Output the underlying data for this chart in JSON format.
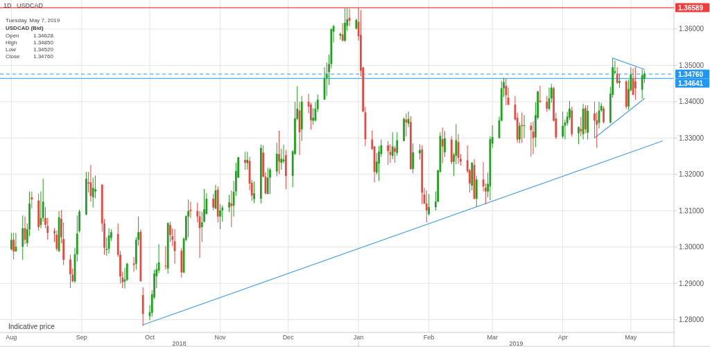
{
  "chart_data": {
    "type": "candlestick",
    "title": "USDCAD",
    "subtitle": "1D",
    "x": [
      "2018-08-01",
      "2018-08-02",
      "2018-08-03",
      "2018-08-06",
      "2018-08-07",
      "2018-08-08",
      "2018-08-09",
      "2018-08-10",
      "2018-08-13",
      "2018-08-14",
      "2018-08-15",
      "2018-08-16",
      "2018-08-17",
      "2018-08-20",
      "2018-08-21",
      "2018-08-22",
      "2018-08-23",
      "2018-08-24",
      "2018-08-27",
      "2018-08-28",
      "2018-08-29",
      "2018-08-30",
      "2018-08-31",
      "2018-09-03",
      "2018-09-04",
      "2018-09-05",
      "2018-09-06",
      "2018-09-07",
      "2018-09-10",
      "2018-09-11",
      "2018-09-12",
      "2018-09-13",
      "2018-09-14",
      "2018-09-17",
      "2018-09-18",
      "2018-09-19",
      "2018-09-20",
      "2018-09-21",
      "2018-09-24",
      "2018-09-25",
      "2018-09-26",
      "2018-09-27",
      "2018-09-28",
      "2018-10-01",
      "2018-10-02",
      "2018-10-03",
      "2018-10-04",
      "2018-10-05",
      "2018-10-08",
      "2018-10-09",
      "2018-10-10",
      "2018-10-11",
      "2018-10-12",
      "2018-10-15",
      "2018-10-16",
      "2018-10-17",
      "2018-10-18",
      "2018-10-19",
      "2018-10-22",
      "2018-10-23",
      "2018-10-24",
      "2018-10-25",
      "2018-10-26",
      "2018-10-29",
      "2018-10-30",
      "2018-10-31",
      "2018-11-01",
      "2018-11-02",
      "2018-11-05",
      "2018-11-06",
      "2018-11-07",
      "2018-11-08",
      "2018-11-09",
      "2018-11-12",
      "2018-11-13",
      "2018-11-14",
      "2018-11-15",
      "2018-11-16",
      "2018-11-19",
      "2018-11-20",
      "2018-11-21",
      "2018-11-22",
      "2018-11-23",
      "2018-11-26",
      "2018-11-27",
      "2018-11-28",
      "2018-11-29",
      "2018-11-30",
      "2018-12-03",
      "2018-12-04",
      "2018-12-05",
      "2018-12-06",
      "2018-12-07",
      "2018-12-10",
      "2018-12-11",
      "2018-12-12",
      "2018-12-13",
      "2018-12-14",
      "2018-12-17",
      "2018-12-18",
      "2018-12-19",
      "2018-12-20",
      "2018-12-21",
      "2018-12-24",
      "2018-12-25",
      "2018-12-26",
      "2018-12-27",
      "2018-12-28",
      "2018-12-31",
      "2019-01-01",
      "2019-01-02",
      "2019-01-03",
      "2019-01-04",
      "2019-01-07",
      "2019-01-08",
      "2019-01-09",
      "2019-01-10",
      "2019-01-11",
      "2019-01-14",
      "2019-01-15",
      "2019-01-16",
      "2019-01-17",
      "2019-01-18",
      "2019-01-21",
      "2019-01-22",
      "2019-01-23",
      "2019-01-24",
      "2019-01-25",
      "2019-01-28",
      "2019-01-29",
      "2019-01-30",
      "2019-01-31",
      "2019-02-01",
      "2019-02-04",
      "2019-02-05",
      "2019-02-06",
      "2019-02-07",
      "2019-02-08",
      "2019-02-11",
      "2019-02-12",
      "2019-02-13",
      "2019-02-14",
      "2019-02-15",
      "2019-02-18",
      "2019-02-19",
      "2019-02-20",
      "2019-02-21",
      "2019-02-22",
      "2019-02-25",
      "2019-02-26",
      "2019-02-27",
      "2019-02-28",
      "2019-03-01",
      "2019-03-04",
      "2019-03-05",
      "2019-03-06",
      "2019-03-07",
      "2019-03-08",
      "2019-03-11",
      "2019-03-12",
      "2019-03-13",
      "2019-03-14",
      "2019-03-15",
      "2019-03-18",
      "2019-03-19",
      "2019-03-20",
      "2019-03-21",
      "2019-03-22",
      "2019-03-25",
      "2019-03-26",
      "2019-03-27",
      "2019-03-28",
      "2019-03-29",
      "2019-04-01",
      "2019-04-02",
      "2019-04-03",
      "2019-04-04",
      "2019-04-05",
      "2019-04-08",
      "2019-04-09",
      "2019-04-10",
      "2019-04-11",
      "2019-04-12",
      "2019-04-15",
      "2019-04-16",
      "2019-04-17",
      "2019-04-18",
      "2019-04-19",
      "2019-04-22",
      "2019-04-23",
      "2019-04-24",
      "2019-04-25",
      "2019-04-26",
      "2019-04-29",
      "2019-04-30",
      "2019-05-01",
      "2019-05-02",
      "2019-05-03",
      "2019-05-06",
      "2019-05-07"
    ],
    "ohlc": [
      [
        1.2994,
        1.3039,
        1.2991,
        1.302
      ],
      [
        1.302,
        1.3039,
        1.2966,
        1.2988
      ],
      [
        1.2988,
        1.3039,
        1.2987,
        1.3001
      ],
      [
        1.3001,
        1.3087,
        1.2965,
        1.3052
      ],
      [
        1.3052,
        1.3084,
        1.3008,
        1.302
      ],
      [
        1.3011,
        1.3065,
        1.3001,
        1.3049
      ],
      [
        1.3049,
        1.3153,
        1.303,
        1.312
      ],
      [
        1.3137,
        1.3153,
        1.3106,
        1.3131
      ],
      [
        1.3128,
        1.3147,
        1.3045,
        1.3055
      ],
      [
        1.3061,
        1.3153,
        1.3052,
        1.308
      ],
      [
        1.308,
        1.3188,
        1.307,
        1.3125
      ],
      [
        1.308,
        1.311,
        1.3052,
        1.3061
      ],
      [
        1.3058,
        1.308,
        1.302,
        1.3039
      ],
      [
        1.3044,
        1.3052,
        1.3014,
        1.3038
      ],
      [
        1.3034,
        1.3046,
        1.2989,
        1.2995
      ],
      [
        1.2989,
        1.3099,
        1.2986,
        1.3082
      ],
      [
        1.3078,
        1.3102,
        1.3011,
        1.3027
      ],
      [
        1.3022,
        1.3068,
        1.2951,
        1.2965
      ],
      [
        1.2966,
        1.2979,
        1.2887,
        1.2925
      ],
      [
        1.2924,
        1.2941,
        1.2903,
        1.2906
      ],
      [
        1.2906,
        1.2998,
        1.2901,
        1.298
      ],
      [
        1.298,
        1.3087,
        1.296,
        1.3037
      ],
      [
        1.3044,
        1.3103,
        1.304,
        1.3098
      ],
      [
        1.309,
        1.3207,
        1.3087,
        1.3188
      ],
      [
        1.3178,
        1.3207,
        1.315,
        1.3175
      ],
      [
        1.3178,
        1.3226,
        1.3125,
        1.3141
      ],
      [
        1.3137,
        1.3191,
        1.3109,
        1.3163
      ],
      [
        1.3153,
        1.3197,
        1.3134,
        1.3159
      ],
      [
        1.3172,
        1.3173,
        1.3042,
        1.3065
      ],
      [
        1.3065,
        1.3077,
        1.2979,
        1.2998
      ],
      [
        1.2992,
        1.3026,
        1.2976,
        1.2995
      ],
      [
        1.2995,
        1.3052,
        1.2982,
        1.3032
      ],
      [
        1.3025,
        1.3049,
        1.3017,
        1.3041
      ],
      [
        1.3036,
        1.3065,
        1.2973,
        1.2979
      ],
      [
        1.2979,
        1.2989,
        1.29,
        1.2919
      ],
      [
        1.2916,
        1.2932,
        1.2887,
        1.2903
      ],
      [
        1.2905,
        1.2943,
        1.2886,
        1.2911
      ],
      [
        1.291,
        1.2957,
        1.2906,
        1.2954
      ],
      [
        1.2955,
        1.2973,
        1.2932,
        1.2951
      ],
      [
        1.2954,
        1.3027,
        1.2938,
        1.302
      ],
      [
        1.302,
        1.3084,
        1.3004,
        1.3041
      ],
      [
        1.3042,
        1.3049,
        1.2905,
        1.2906
      ],
      [
        1.2868,
        1.2889,
        1.2783,
        1.2816
      ],
      [
        1.281,
        1.284,
        1.2799,
        1.2821
      ],
      [
        1.2819,
        1.2882,
        1.2808,
        1.287
      ],
      [
        1.2862,
        1.2937,
        1.2857,
        1.2927
      ],
      [
        1.292,
        1.2955,
        1.2887,
        1.2939
      ],
      [
        1.2935,
        1.3008,
        1.2928,
        1.2958
      ],
      [
        1.2949,
        1.3003,
        1.2938,
        1.2947
      ],
      [
        1.2941,
        1.3068,
        1.2927,
        1.3066
      ],
      [
        1.3061,
        1.307,
        1.3014,
        1.3033
      ],
      [
        1.303,
        1.3051,
        1.3003,
        1.302
      ],
      [
        1.3016,
        1.3049,
        1.2954,
        1.2989
      ],
      [
        1.299,
        1.2997,
        1.2916,
        1.293
      ],
      [
        1.293,
        1.3027,
        1.2928,
        1.3023
      ],
      [
        1.302,
        1.3087,
        1.3017,
        1.3085
      ],
      [
        1.3084,
        1.3131,
        1.3027,
        1.3099
      ],
      [
        1.3103,
        1.3125,
        1.308,
        1.3099
      ],
      [
        1.3099,
        1.3122,
        1.3068,
        1.3084
      ],
      [
        1.3084,
        1.3099,
        1.297,
        1.3052
      ],
      [
        1.3055,
        1.3097,
        1.3014,
        1.3068
      ],
      [
        1.307,
        1.316,
        1.3068,
        1.3104
      ],
      [
        1.3091,
        1.3148,
        1.309,
        1.3133
      ],
      [
        1.3133,
        1.3146,
        1.3101,
        1.3109
      ],
      [
        1.3106,
        1.3171,
        1.3104,
        1.3156
      ],
      [
        1.3158,
        1.3167,
        1.3068,
        1.3084
      ],
      [
        1.3084,
        1.3118,
        1.3049,
        1.3101
      ],
      [
        1.3101,
        1.3115,
        1.307,
        1.3109
      ],
      [
        1.3109,
        1.3144,
        1.3097,
        1.3123
      ],
      [
        1.312,
        1.3156,
        1.3055,
        1.3113
      ],
      [
        1.3114,
        1.3182,
        1.3084,
        1.3152
      ],
      [
        1.3153,
        1.3232,
        1.3141,
        1.3209
      ],
      [
        1.3191,
        1.3248,
        1.3191,
        1.3247
      ],
      [
        1.324,
        1.3262,
        1.3213,
        1.3232
      ],
      [
        1.3231,
        1.3262,
        1.3213,
        1.324
      ],
      [
        1.3237,
        1.3248,
        1.3156,
        1.3175
      ],
      [
        1.3177,
        1.3185,
        1.3127,
        1.3142
      ],
      [
        1.3132,
        1.3181,
        1.3121,
        1.3148
      ],
      [
        1.3133,
        1.3282,
        1.312,
        1.3273
      ],
      [
        1.326,
        1.328,
        1.3191,
        1.3194
      ],
      [
        1.3194,
        1.3206,
        1.3145,
        1.3148
      ],
      [
        1.3146,
        1.3218,
        1.3145,
        1.3191
      ],
      [
        1.3191,
        1.3218,
        1.3146,
        1.3213
      ],
      [
        1.3208,
        1.3287,
        1.3195,
        1.3257
      ],
      [
        1.3256,
        1.332,
        1.3201,
        1.3235
      ],
      [
        1.3232,
        1.3271,
        1.3213,
        1.3243
      ],
      [
        1.3236,
        1.3282,
        1.323,
        1.3241
      ],
      [
        1.3253,
        1.3267,
        1.3159,
        1.3196
      ],
      [
        1.3196,
        1.3266,
        1.3165,
        1.3264
      ],
      [
        1.3256,
        1.34,
        1.3254,
        1.3354
      ],
      [
        1.3353,
        1.3443,
        1.3349,
        1.3381
      ],
      [
        1.3376,
        1.34,
        1.3253,
        1.3316
      ],
      [
        1.3324,
        1.3416,
        1.3292,
        1.34
      ],
      [
        1.34,
        1.3422,
        1.3368,
        1.3387
      ],
      [
        1.3392,
        1.3397,
        1.3323,
        1.3349
      ],
      [
        1.3348,
        1.3382,
        1.3337,
        1.3356
      ],
      [
        1.3348,
        1.34,
        1.3346,
        1.3381
      ],
      [
        1.338,
        1.342,
        1.3372,
        1.3406
      ],
      [
        1.3406,
        1.3495,
        1.3405,
        1.3465
      ],
      [
        1.3465,
        1.3508,
        1.3416,
        1.3475
      ],
      [
        1.3482,
        1.353,
        1.3446,
        1.3504
      ],
      [
        1.3504,
        1.3602,
        1.3492,
        1.36
      ],
      [
        1.3593,
        1.3612,
        1.3563,
        1.3608
      ],
      [
        1.3582,
        1.359,
        1.3571,
        1.3587
      ],
      [
        1.3585,
        1.3617,
        1.3566,
        1.3568
      ],
      [
        1.3568,
        1.3657,
        1.3565,
        1.3617
      ],
      [
        1.3609,
        1.3658,
        1.3595,
        1.3627
      ],
      [
        1.3631,
        1.3656,
        1.3608,
        1.3623
      ],
      [
        1.3601,
        1.3629,
        1.3599,
        1.3625
      ],
      [
        1.362,
        1.36589,
        1.3568,
        1.358
      ],
      [
        1.3584,
        1.3652,
        1.347,
        1.3485
      ],
      [
        1.3494,
        1.3496,
        1.3371,
        1.3373
      ],
      [
        1.3371,
        1.3386,
        1.3278,
        1.3297
      ],
      [
        1.3296,
        1.3321,
        1.3267,
        1.327
      ],
      [
        1.3277,
        1.3278,
        1.3178,
        1.3207
      ],
      [
        1.3205,
        1.3259,
        1.3199,
        1.3235
      ],
      [
        1.323,
        1.3278,
        1.3182,
        1.3263
      ],
      [
        1.3256,
        1.3296,
        1.3248,
        1.328
      ],
      [
        1.328,
        1.3292,
        1.3226,
        1.3264
      ],
      [
        1.3262,
        1.3283,
        1.3232,
        1.3254
      ],
      [
        1.3251,
        1.3316,
        1.3242,
        1.3277
      ],
      [
        1.3272,
        1.3278,
        1.3232,
        1.3262
      ],
      [
        1.3259,
        1.3316,
        1.3251,
        1.3294
      ],
      [
        1.3292,
        1.3356,
        1.3291,
        1.3353
      ],
      [
        1.3351,
        1.3368,
        1.3304,
        1.3343
      ],
      [
        1.334,
        1.3373,
        1.333,
        1.3353
      ],
      [
        1.3344,
        1.336,
        1.3213,
        1.3215
      ],
      [
        1.3215,
        1.3285,
        1.3203,
        1.3261
      ],
      [
        1.3258,
        1.3283,
        1.3241,
        1.3267
      ],
      [
        1.3269,
        1.328,
        1.3118,
        1.315
      ],
      [
        1.3145,
        1.3163,
        1.3118,
        1.312
      ],
      [
        1.312,
        1.3156,
        1.3068,
        1.3101
      ],
      [
        1.3091,
        1.3146,
        1.3087,
        1.311
      ],
      [
        1.311,
        1.3153,
        1.3101,
        1.3125
      ],
      [
        1.3125,
        1.3213,
        1.3123,
        1.3211
      ],
      [
        1.3207,
        1.3316,
        1.3205,
        1.3306
      ],
      [
        1.3297,
        1.3329,
        1.3231,
        1.3277
      ],
      [
        1.3261,
        1.3319,
        1.3248,
        1.3299
      ],
      [
        1.3296,
        1.3305,
        1.3228,
        1.3234
      ],
      [
        1.3235,
        1.3259,
        1.3196,
        1.3254
      ],
      [
        1.3251,
        1.3338,
        1.3228,
        1.3294
      ],
      [
        1.3289,
        1.3311,
        1.3229,
        1.3245
      ],
      [
        1.3243,
        1.3256,
        1.3224,
        1.3235
      ],
      [
        1.3239,
        1.328,
        1.3204,
        1.3209
      ],
      [
        1.3211,
        1.3215,
        1.315,
        1.3175
      ],
      [
        1.3169,
        1.3234,
        1.3156,
        1.3232
      ],
      [
        1.3226,
        1.3242,
        1.3131,
        1.3133
      ],
      [
        1.3133,
        1.3196,
        1.311,
        1.3186
      ],
      [
        1.3186,
        1.3234,
        1.3153,
        1.3167
      ],
      [
        1.3163,
        1.3175,
        1.3118,
        1.3153
      ],
      [
        1.3153,
        1.3205,
        1.3137,
        1.3174
      ],
      [
        1.3167,
        1.3305,
        1.3129,
        1.3297
      ],
      [
        1.3285,
        1.3335,
        1.3273,
        1.3303
      ],
      [
        1.33,
        1.3359,
        1.3299,
        1.3349
      ],
      [
        1.3348,
        1.3457,
        1.3346,
        1.3437
      ],
      [
        1.3437,
        1.3466,
        1.3413,
        1.3454
      ],
      [
        1.3444,
        1.3464,
        1.339,
        1.3418
      ],
      [
        1.3411,
        1.3439,
        1.339,
        1.3392
      ],
      [
        1.3392,
        1.3416,
        1.3349,
        1.3351
      ],
      [
        1.3356,
        1.337,
        1.3287,
        1.3296
      ],
      [
        1.3296,
        1.3343,
        1.3286,
        1.3334
      ],
      [
        1.3336,
        1.337,
        1.3287,
        1.3333
      ],
      [
        1.3333,
        1.3363,
        1.33,
        1.3335
      ],
      [
        1.3334,
        1.3343,
        1.3249,
        1.3322
      ],
      [
        1.3318,
        1.3346,
        1.3256,
        1.33
      ],
      [
        1.3302,
        1.3399,
        1.3275,
        1.3363
      ],
      [
        1.3356,
        1.343,
        1.3351,
        1.3428
      ],
      [
        1.3403,
        1.3444,
        1.3397,
        1.3399
      ],
      [
        1.34,
        1.3416,
        1.3372,
        1.3381
      ],
      [
        1.338,
        1.3439,
        1.3376,
        1.3409
      ],
      [
        1.3409,
        1.3449,
        1.3397,
        1.3439
      ],
      [
        1.3437,
        1.3441,
        1.3346,
        1.3348
      ],
      [
        1.3354,
        1.337,
        1.3297,
        1.3302
      ],
      [
        1.3304,
        1.3373,
        1.3299,
        1.3334
      ],
      [
        1.3334,
        1.3351,
        1.3296,
        1.3343
      ],
      [
        1.3341,
        1.3372,
        1.3334,
        1.3359
      ],
      [
        1.3356,
        1.3402,
        1.3349,
        1.3381
      ],
      [
        1.3376,
        1.3386,
        1.3304,
        1.3311
      ],
      [
        1.3313,
        1.3332,
        1.3283,
        1.333
      ],
      [
        1.3325,
        1.3358,
        1.3305,
        1.3319
      ],
      [
        1.3311,
        1.3394,
        1.3296,
        1.3381
      ],
      [
        1.3382,
        1.339,
        1.3313,
        1.3324
      ],
      [
        1.3315,
        1.339,
        1.3296,
        1.3375
      ],
      [
        1.3368,
        1.34,
        1.3302,
        1.3348
      ],
      [
        1.3349,
        1.3371,
        1.3273,
        1.3337
      ],
      [
        1.3342,
        1.34,
        1.3327,
        1.3376
      ],
      [
        1.3376,
        1.3397,
        1.3372,
        1.3389
      ],
      [
        1.3381,
        1.3387,
        1.334,
        1.3344
      ],
      [
        1.3343,
        1.3441,
        1.334,
        1.3422
      ],
      [
        1.3419,
        1.352,
        1.3411,
        1.3495
      ],
      [
        1.3479,
        1.3513,
        1.3477,
        1.3484
      ],
      [
        1.3477,
        1.3495,
        1.3449,
        1.3452
      ],
      [
        1.3452,
        1.3476,
        1.3438,
        1.3457
      ],
      [
        1.3456,
        1.346,
        1.338,
        1.3386
      ],
      [
        1.3387,
        1.346,
        1.3378,
        1.3435
      ],
      [
        1.3432,
        1.3495,
        1.3428,
        1.3475
      ],
      [
        1.3463,
        1.3492,
        1.3418,
        1.3419
      ],
      [
        1.3456,
        1.3495,
        1.3405,
        1.3437
      ],
      [
        1.3433,
        1.3489,
        1.3408,
        1.3473
      ],
      [
        1.34628,
        1.3485,
        1.3452,
        1.3476
      ]
    ],
    "series": [
      {
        "type": "line",
        "color": "#4a9fe0",
        "x": [
          "2018-09-28",
          "2019-05-15"
        ],
        "values": [
          1.2786,
          1.3292
        ]
      },
      {
        "type": "line",
        "color": "#4a9fe0",
        "x": [
          "2019-04-23",
          "2019-05-07"
        ],
        "values": [
          1.352,
          1.3489
        ]
      },
      {
        "type": "line",
        "color": "#4a9fe0",
        "x": [
          "2019-04-15",
          "2019-05-07"
        ],
        "values": [
          1.33,
          1.3409
        ]
      }
    ],
    "xlim": [
      "2018-07-27",
      "2019-05-20"
    ],
    "xticks": [
      {
        "value": "2018-08-01",
        "label": "Aug"
      },
      {
        "value": "2018-09-01",
        "label": "Sep"
      },
      {
        "value": "2018-10-01",
        "label": "Oct"
      },
      {
        "value": "2018-11-01",
        "label": "Nov"
      },
      {
        "value": "2018-12-01",
        "label": "Dec"
      },
      {
        "value": "2019-01-01",
        "label": "Jan"
      },
      {
        "value": "2019-02-01",
        "label": "Feb"
      },
      {
        "value": "2019-03-01",
        "label": "Mar"
      },
      {
        "value": "2019-04-01",
        "label": "Apr"
      },
      {
        "value": "2019-05-01",
        "label": "May"
      }
    ],
    "ylim": [
      1.2765,
      1.368
    ],
    "yticks": [
      {
        "value": 1.28,
        "label": "1.28000"
      },
      {
        "value": 1.29,
        "label": "1.29000"
      },
      {
        "value": 1.3,
        "label": "1.30000"
      },
      {
        "value": 1.31,
        "label": "1.31000"
      },
      {
        "value": 1.32,
        "label": "1.32000"
      },
      {
        "value": 1.33,
        "label": "1.33000"
      },
      {
        "value": 1.34,
        "label": "1.34000"
      },
      {
        "value": 1.35,
        "label": "1.35000"
      },
      {
        "value": 1.36,
        "label": "1.36000"
      }
    ],
    "grid": true,
    "ref_lines": [
      {
        "axis": "y",
        "value": 1.36589,
        "label": "1.36589",
        "color": "#f23b3b"
      },
      {
        "axis": "y",
        "value": 1.3476,
        "label": "1.34760",
        "color": "#2196f3",
        "line_style": "dashed"
      },
      {
        "axis": "y",
        "value": 1.34641,
        "label": "1.34641",
        "color": "#2196f3"
      }
    ],
    "annotations": [
      "Indicative price",
      "Tuesday, May 7, 2019",
      "USDCAD (Bid)",
      "Open",
      "1.34628",
      "High",
      "1.34850",
      "Low",
      "1.34520",
      "Close",
      "1.34760",
      "2018",
      "2019"
    ]
  }
}
